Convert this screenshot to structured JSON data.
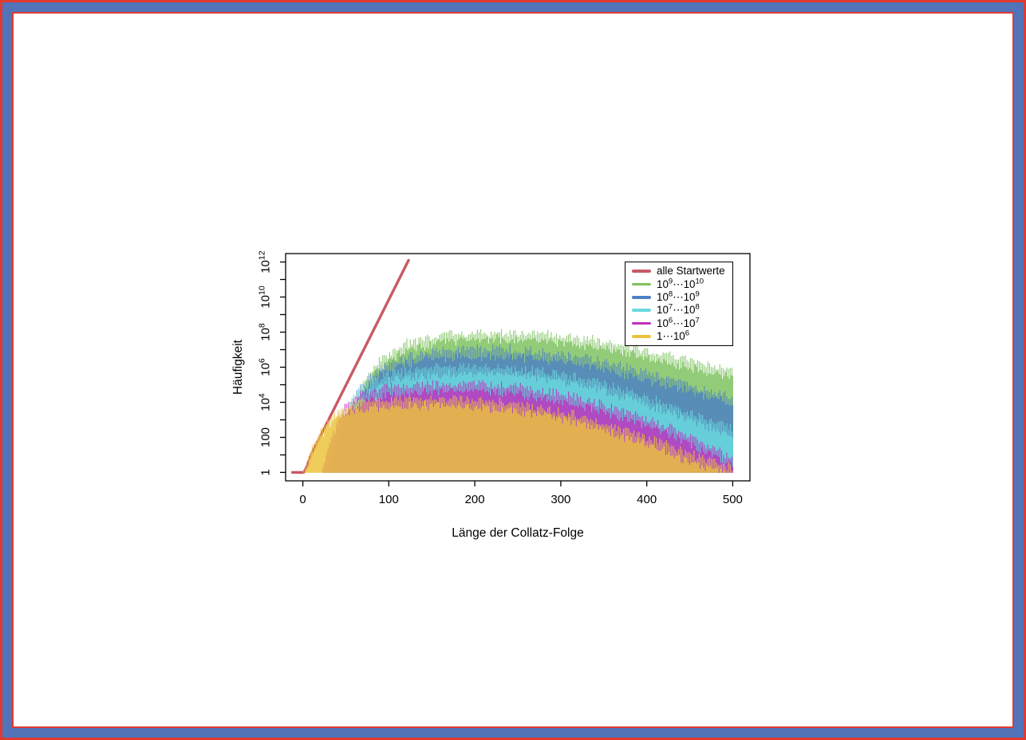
{
  "frame": {
    "outer_color": "#e03a30",
    "band_color": "#5273b8",
    "inner_color": "#e03a30",
    "background": "#ffffff"
  },
  "chart_data": {
    "type": "bar",
    "title": "",
    "xlabel": "Länge der Collatz-Folge",
    "ylabel": "Häufigkeit",
    "grid": false,
    "legend_position": "top-right",
    "x_ticks": [
      0,
      100,
      200,
      300,
      400,
      500
    ],
    "xlim": [
      -20,
      520
    ],
    "y_scale": "log10",
    "y_tick_labels": [
      "1",
      "100",
      "10^4",
      "10^6",
      "10^8",
      "10^10",
      "10^12"
    ],
    "y_tick_log10": [
      0,
      2,
      4,
      6,
      8,
      10,
      12
    ],
    "y_minor_tick_log10": [
      1,
      3,
      5,
      7,
      9,
      11
    ],
    "ylim_log10": [
      -0.48,
      12.48
    ],
    "axis_color": "#000000",
    "series": [
      {
        "label": "alle Startwerte",
        "type": "line",
        "color": "#c85a64",
        "line_width": 3.4,
        "points_log10": [
          [
            -12,
            0
          ],
          [
            1,
            0
          ],
          [
            4,
            0.25
          ],
          [
            7,
            0.65
          ],
          [
            10,
            1.05
          ],
          [
            123,
            12.1
          ]
        ]
      },
      {
        "label": "10^9⋯10^10",
        "type": "bars",
        "color": "#7dc25e",
        "x_start": 34,
        "x_end": 500,
        "oscillation_amplitude_log10": 0.5,
        "envelope_log10": [
          [
            34,
            0
          ],
          [
            45,
            2.0
          ],
          [
            55,
            3.5
          ],
          [
            70,
            5.0
          ],
          [
            90,
            6.2
          ],
          [
            120,
            7.15
          ],
          [
            160,
            7.65
          ],
          [
            210,
            7.8
          ],
          [
            260,
            7.75
          ],
          [
            310,
            7.55
          ],
          [
            360,
            7.15
          ],
          [
            410,
            6.65
          ],
          [
            460,
            6.05
          ],
          [
            500,
            5.6
          ]
        ]
      },
      {
        "label": "10^8⋯10^9",
        "type": "bars",
        "color": "#4e81c4",
        "x_start": 30,
        "x_end": 500,
        "oscillation_amplitude_log10": 0.5,
        "envelope_log10": [
          [
            30,
            0
          ],
          [
            40,
            1.8
          ],
          [
            50,
            3.2
          ],
          [
            65,
            4.5
          ],
          [
            85,
            5.6
          ],
          [
            110,
            6.25
          ],
          [
            150,
            6.7
          ],
          [
            200,
            6.85
          ],
          [
            250,
            6.8
          ],
          [
            300,
            6.55
          ],
          [
            350,
            6.1
          ],
          [
            400,
            5.5
          ],
          [
            450,
            4.8
          ],
          [
            500,
            4.1
          ]
        ]
      },
      {
        "label": "10^7⋯10^8",
        "type": "bars",
        "color": "#69dadf",
        "x_start": 27,
        "x_end": 500,
        "oscillation_amplitude_log10": 0.5,
        "envelope_log10": [
          [
            27,
            0
          ],
          [
            35,
            1.5
          ],
          [
            45,
            3.0
          ],
          [
            60,
            4.2
          ],
          [
            80,
            5.0
          ],
          [
            110,
            5.5
          ],
          [
            150,
            5.75
          ],
          [
            190,
            5.85
          ],
          [
            230,
            5.8
          ],
          [
            270,
            5.6
          ],
          [
            310,
            5.3
          ],
          [
            350,
            4.85
          ],
          [
            390,
            4.25
          ],
          [
            430,
            3.55
          ],
          [
            470,
            2.85
          ],
          [
            500,
            2.35
          ]
        ]
      },
      {
        "label": "10^6⋯10^7",
        "type": "bars",
        "color": "#bf30be",
        "x_start": 22,
        "x_end": 500,
        "oscillation_amplitude_log10": 0.5,
        "envelope_log10": [
          [
            22,
            0
          ],
          [
            30,
            1.5
          ],
          [
            40,
            2.8
          ],
          [
            50,
            3.6
          ],
          [
            70,
            4.3
          ],
          [
            100,
            4.65
          ],
          [
            140,
            4.8
          ],
          [
            180,
            4.85
          ],
          [
            220,
            4.8
          ],
          [
            260,
            4.6
          ],
          [
            300,
            4.3
          ],
          [
            340,
            3.8
          ],
          [
            380,
            3.2
          ],
          [
            420,
            2.5
          ],
          [
            460,
            1.6
          ],
          [
            500,
            0.6
          ]
        ]
      },
      {
        "label": "1⋯10^6",
        "type": "bars",
        "color": "#ecc33c",
        "x_start": 1,
        "x_end": 500,
        "oscillation_amplitude_log10": 0.5,
        "envelope_log10": [
          [
            1,
            0
          ],
          [
            5,
            0.4
          ],
          [
            10,
            1.2
          ],
          [
            20,
            2.2
          ],
          [
            30,
            2.9
          ],
          [
            40,
            3.3
          ],
          [
            60,
            3.7
          ],
          [
            80,
            3.85
          ],
          [
            100,
            3.95
          ],
          [
            130,
            4.0
          ],
          [
            160,
            4.05
          ],
          [
            200,
            3.95
          ],
          [
            230,
            3.8
          ],
          [
            260,
            3.6
          ],
          [
            290,
            3.35
          ],
          [
            320,
            3.0
          ],
          [
            350,
            2.6
          ],
          [
            380,
            2.1
          ],
          [
            410,
            1.6
          ],
          [
            440,
            1.0
          ],
          [
            470,
            0.5
          ],
          [
            500,
            0.1
          ]
        ]
      }
    ]
  }
}
